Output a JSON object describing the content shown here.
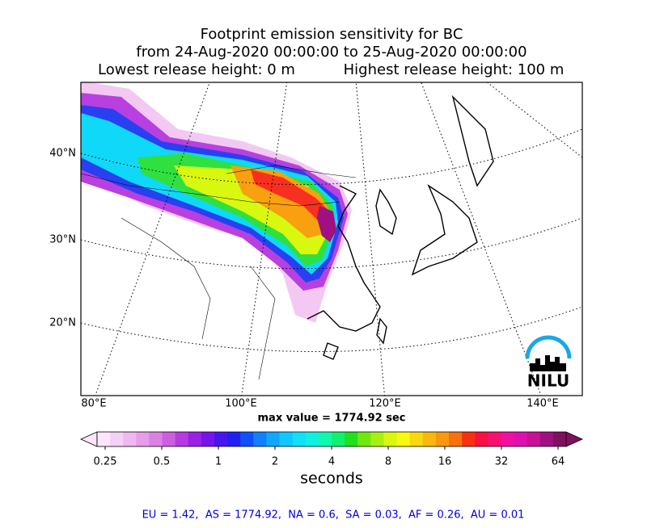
{
  "title_lines": [
    "Footprint emission sensitivity for BC",
    "from 24-Aug-2020 00:00:00 to 25-Aug-2020 00:00:00"
  ],
  "release_heights": [
    "Lowest release height: 0 m",
    "Highest release height: 100 m"
  ],
  "map": {
    "lat_labels": [
      "40°N",
      "30°N",
      "20°N"
    ],
    "lon_labels": [
      "80°E",
      "100°E",
      "120°E",
      "140°E"
    ],
    "max_value": "max value = 1774.92 sec",
    "logo": "NILU"
  },
  "colorbar": {
    "ticks": [
      0.25,
      0.5,
      1,
      2,
      4,
      8,
      16,
      32,
      64
    ],
    "label": "seconds",
    "colors": [
      "#fbe6fb",
      "#f6d0f6",
      "#efb8ef",
      "#e69ee8",
      "#dc80e4",
      "#cc5ee0",
      "#b63ae0",
      "#9a20e6",
      "#7814ea",
      "#4a14ee",
      "#2020f0",
      "#1050f8",
      "#1080ff",
      "#10a8ff",
      "#10c8ff",
      "#10e0f8",
      "#10f0e0",
      "#10f8b0",
      "#10f070",
      "#20e020",
      "#70e810",
      "#a8f010",
      "#d8f810",
      "#f8f810",
      "#f8d810",
      "#f8b810",
      "#f89810",
      "#f87010",
      "#f83010",
      "#f81040",
      "#f81070",
      "#f010a0",
      "#e010b0",
      "#c81098",
      "#a01080",
      "#801060"
    ]
  },
  "summary": "EU = 1.42,  AS = 1774.92,  NA = 0.6,  SA = 0.03,  AF = 0.26,  AU = 0.01"
}
